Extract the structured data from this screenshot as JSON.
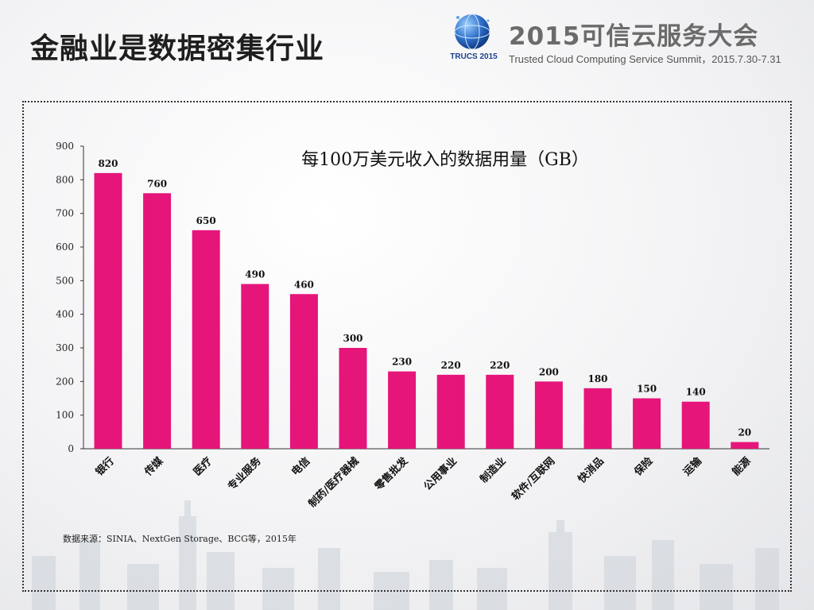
{
  "page": {
    "title": "金融业是数据密集行业"
  },
  "header": {
    "logo_text": "TRUCS 2015",
    "summit_title": "2015可信云服务大会",
    "summit_subtitle": "Trusted Cloud Computing Service Summit，2015.7.30-7.31"
  },
  "colors": {
    "bar": "#e5157a",
    "axis": "#333333"
  },
  "chart_data": {
    "type": "bar",
    "title": "每100万美元收入的数据用量（GB）",
    "xlabel": "",
    "ylabel": "",
    "ylim": [
      0,
      900
    ],
    "yticks": [
      0,
      100,
      200,
      300,
      400,
      500,
      600,
      700,
      800,
      900
    ],
    "grid": false,
    "categories": [
      "银行",
      "传媒",
      "医疗",
      "专业服务",
      "电信",
      "制药/医疗器械",
      "零售批发",
      "公用事业",
      "制造业",
      "软件/互联网",
      "快消品",
      "保险",
      "运输",
      "能源"
    ],
    "values": [
      820,
      760,
      650,
      490,
      460,
      300,
      230,
      220,
      220,
      200,
      180,
      150,
      140,
      20
    ],
    "data_labels": true
  },
  "footer": {
    "source": "数据来源：SINIA、NextGen Storage、BCG等，2015年"
  }
}
